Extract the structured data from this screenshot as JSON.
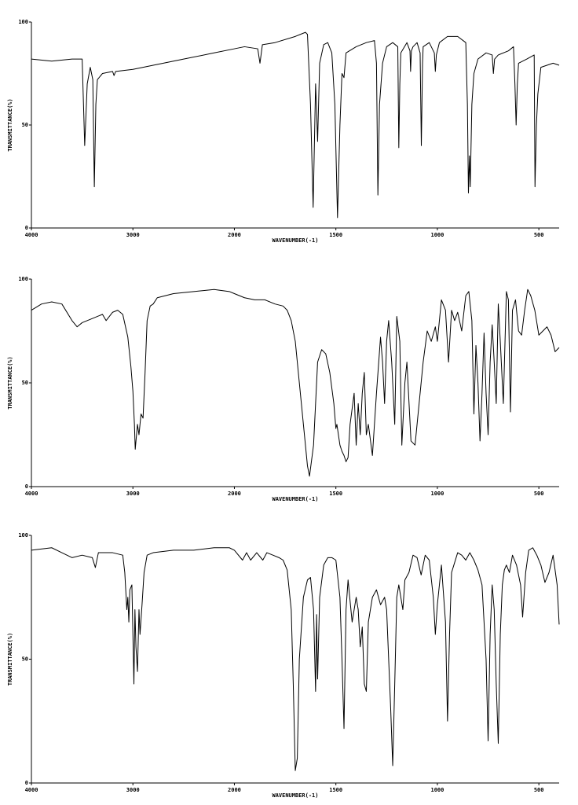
{
  "chart_data": [
    {
      "type": "line",
      "xlabel": "WAVENUMBER(-1)",
      "ylabel": "TRANSMITTANCE(%)",
      "color": "#000000",
      "xlim": [
        4000,
        400
      ],
      "ylim": [
        0,
        100
      ],
      "xticks": [
        4000,
        3000,
        2000,
        1500,
        1000,
        500
      ],
      "yticks": [
        0,
        50,
        100
      ],
      "x": [
        4000,
        3800,
        3600,
        3500,
        3475,
        3450,
        3420,
        3395,
        3380,
        3365,
        3350,
        3300,
        3200,
        3186,
        3170,
        3000,
        2800,
        2500,
        2200,
        2000,
        1950,
        1885,
        1874,
        1862,
        1800,
        1700,
        1650,
        1640,
        1625,
        1612,
        1600,
        1595,
        1590,
        1580,
        1560,
        1540,
        1520,
        1505,
        1492,
        1480,
        1470,
        1460,
        1450,
        1400,
        1350,
        1310,
        1300,
        1293,
        1285,
        1270,
        1250,
        1220,
        1195,
        1190,
        1185,
        1180,
        1150,
        1135,
        1132,
        1128,
        1120,
        1100,
        1085,
        1079,
        1073,
        1070,
        1040,
        1015,
        1010,
        1005,
        990,
        950,
        900,
        860,
        852,
        847,
        842,
        838,
        830,
        820,
        800,
        760,
        730,
        724,
        718,
        700,
        650,
        625,
        618,
        612,
        606,
        600,
        560,
        523,
        519,
        512,
        505,
        490,
        460,
        430,
        400
      ],
      "values": [
        82,
        81,
        82,
        82,
        40,
        70,
        78,
        72,
        20,
        60,
        72,
        75,
        76,
        74,
        76,
        77,
        79,
        82,
        85,
        87,
        88,
        87,
        80,
        89,
        90,
        93,
        95,
        94,
        60,
        10,
        70,
        57,
        42,
        80,
        89,
        90,
        85,
        60,
        5,
        50,
        75,
        73,
        85,
        88,
        90,
        91,
        80,
        16,
        60,
        80,
        88,
        90,
        88,
        39,
        70,
        85,
        90,
        86,
        76,
        86,
        88,
        90,
        85,
        40,
        80,
        88,
        90,
        85,
        76,
        84,
        90,
        93,
        93,
        90,
        60,
        17,
        35,
        20,
        60,
        75,
        82,
        85,
        84,
        75,
        82,
        84,
        86,
        88,
        70,
        50,
        70,
        80,
        82,
        84,
        20,
        50,
        65,
        78,
        79,
        80,
        79
      ]
    },
    {
      "type": "line",
      "xlabel": "WAVENUMBER(-1)",
      "ylabel": "TRANSMITTANCE(%)",
      "color": "#000000",
      "xlim": [
        4000,
        400
      ],
      "ylim": [
        0,
        100
      ],
      "xticks": [
        4000,
        3000,
        2000,
        1500,
        1000,
        500
      ],
      "yticks": [
        0,
        50,
        100
      ],
      "x": [
        4000,
        3900,
        3800,
        3700,
        3600,
        3550,
        3500,
        3400,
        3300,
        3264,
        3200,
        3150,
        3100,
        3050,
        3020,
        3000,
        2985,
        2977,
        2955,
        2940,
        2920,
        2900,
        2880,
        2860,
        2830,
        2800,
        2760,
        2600,
        2400,
        2200,
        2050,
        2000,
        1950,
        1900,
        1850,
        1800,
        1760,
        1740,
        1720,
        1700,
        1680,
        1660,
        1640,
        1630,
        1610,
        1600,
        1590,
        1570,
        1550,
        1530,
        1510,
        1500,
        1495,
        1480,
        1470,
        1460,
        1450,
        1440,
        1430,
        1410,
        1400,
        1390,
        1380,
        1370,
        1360,
        1350,
        1340,
        1320,
        1300,
        1280,
        1270,
        1260,
        1250,
        1240,
        1225,
        1210,
        1200,
        1185,
        1175,
        1160,
        1150,
        1130,
        1110,
        1090,
        1070,
        1050,
        1030,
        1010,
        1000,
        980,
        960,
        945,
        930,
        915,
        900,
        880,
        860,
        845,
        830,
        820,
        810,
        800,
        790,
        780,
        770,
        760,
        750,
        740,
        730,
        720,
        710,
        700,
        690,
        675,
        660,
        650,
        640,
        630,
        615,
        600,
        585,
        570,
        555,
        540,
        520,
        500,
        480,
        460,
        440,
        420,
        400
      ],
      "values": [
        85,
        88,
        89,
        88,
        80,
        77,
        79,
        81,
        83,
        80,
        84,
        85,
        83,
        72,
        58,
        46,
        30,
        18,
        30,
        25,
        35,
        33,
        55,
        80,
        87,
        88,
        91,
        93,
        94,
        95,
        94,
        93,
        91,
        90,
        90,
        88,
        87,
        85,
        80,
        70,
        50,
        30,
        10,
        5,
        20,
        40,
        60,
        66,
        64,
        55,
        40,
        28,
        30,
        20,
        17,
        15,
        12,
        14,
        30,
        45,
        20,
        40,
        25,
        45,
        55,
        25,
        30,
        15,
        45,
        72,
        60,
        40,
        70,
        80,
        60,
        30,
        82,
        70,
        20,
        50,
        60,
        22,
        20,
        40,
        60,
        75,
        70,
        77,
        70,
        90,
        85,
        60,
        85,
        80,
        84,
        75,
        92,
        94,
        80,
        35,
        68,
        50,
        22,
        45,
        74,
        45,
        25,
        60,
        78,
        60,
        40,
        88,
        70,
        40,
        94,
        90,
        36,
        85,
        90,
        75,
        73,
        85,
        95,
        92,
        85,
        73,
        75,
        77,
        73,
        65,
        67
      ]
    },
    {
      "type": "line",
      "xlabel": "WAVENUMBER(-1)",
      "ylabel": "TRANSMITTANCE(%)",
      "color": "#000000",
      "xlim": [
        4000,
        400
      ],
      "ylim": [
        0,
        100
      ],
      "xticks": [
        4000,
        3000,
        2000,
        1500,
        1000,
        500
      ],
      "yticks": [
        0,
        50,
        100
      ],
      "x": [
        4000,
        3800,
        3700,
        3600,
        3500,
        3400,
        3370,
        3340,
        3200,
        3100,
        3080,
        3060,
        3050,
        3040,
        3030,
        3010,
        3000,
        2990,
        2980,
        2970,
        2955,
        2940,
        2930,
        2910,
        2890,
        2860,
        2800,
        2600,
        2400,
        2200,
        2050,
        2000,
        1960,
        1940,
        1920,
        1890,
        1860,
        1840,
        1810,
        1780,
        1760,
        1740,
        1720,
        1710,
        1700,
        1690,
        1680,
        1660,
        1640,
        1625,
        1610,
        1600,
        1595,
        1590,
        1580,
        1560,
        1540,
        1520,
        1500,
        1480,
        1470,
        1460,
        1450,
        1440,
        1420,
        1400,
        1390,
        1380,
        1370,
        1360,
        1350,
        1340,
        1320,
        1300,
        1280,
        1260,
        1250,
        1230,
        1220,
        1210,
        1200,
        1190,
        1170,
        1160,
        1140,
        1120,
        1100,
        1080,
        1060,
        1040,
        1020,
        1010,
        1000,
        990,
        980,
        960,
        950,
        940,
        930,
        900,
        880,
        860,
        840,
        820,
        800,
        780,
        760,
        750,
        740,
        730,
        720,
        710,
        700,
        690,
        680,
        670,
        660,
        645,
        630,
        610,
        590,
        580,
        565,
        550,
        530,
        510,
        490,
        470,
        450,
        430,
        410,
        400
      ],
      "values": [
        94,
        95,
        93,
        91,
        92,
        91,
        87,
        93,
        93,
        92,
        85,
        70,
        75,
        65,
        78,
        80,
        60,
        40,
        70,
        55,
        45,
        70,
        60,
        72,
        85,
        92,
        93,
        94,
        94,
        95,
        95,
        94,
        90,
        93,
        90,
        93,
        90,
        93,
        92,
        91,
        90,
        86,
        70,
        40,
        5,
        10,
        50,
        75,
        82,
        83,
        70,
        37,
        68,
        42,
        75,
        88,
        91,
        91,
        90,
        75,
        50,
        22,
        70,
        82,
        65,
        75,
        70,
        55,
        63,
        40,
        37,
        65,
        75,
        78,
        72,
        75,
        70,
        30,
        7,
        40,
        75,
        80,
        70,
        82,
        85,
        92,
        91,
        84,
        92,
        90,
        75,
        60,
        72,
        80,
        88,
        65,
        25,
        60,
        85,
        93,
        92,
        90,
        93,
        90,
        86,
        80,
        50,
        17,
        60,
        80,
        70,
        40,
        16,
        60,
        80,
        86,
        88,
        85,
        92,
        88,
        80,
        67,
        85,
        94,
        95,
        92,
        88,
        81,
        85,
        92,
        80,
        64
      ]
    }
  ]
}
